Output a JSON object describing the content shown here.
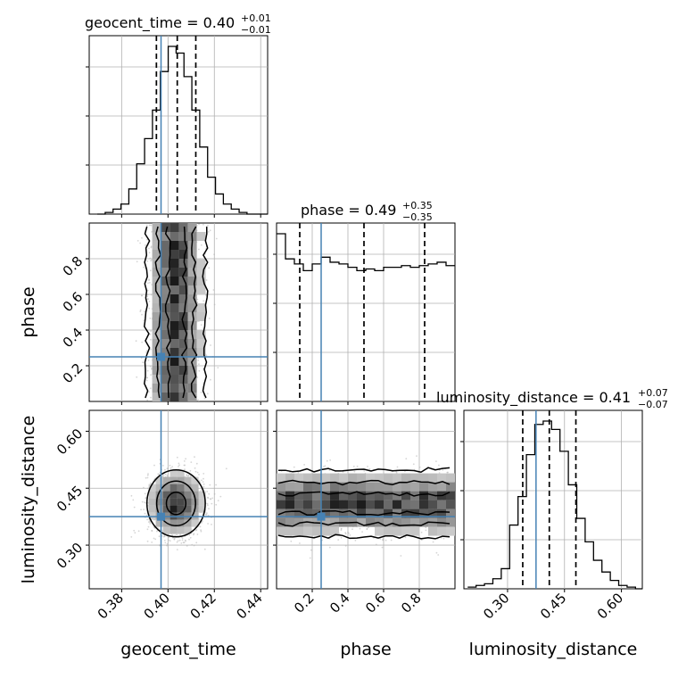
{
  "chart_data": {
    "type": "corner",
    "parameters": [
      "geocent_time",
      "phase",
      "luminosity_distance"
    ],
    "axis_labels": {
      "geocent_time": "geocent_time",
      "phase": "phase",
      "luminosity_distance": "luminosity_distance"
    },
    "ranges": {
      "geocent_time": [
        0.366,
        0.443
      ],
      "phase": [
        0.0,
        1.0
      ],
      "luminosity_distance": [
        0.185,
        0.655
      ]
    },
    "ticks": {
      "geocent_time": [
        {
          "value": 0.38,
          "label": "0.38"
        },
        {
          "value": 0.4,
          "label": "0.40"
        },
        {
          "value": 0.42,
          "label": "0.42"
        },
        {
          "value": 0.44,
          "label": "0.44"
        }
      ],
      "phase": [
        {
          "value": 0.2,
          "label": "0.2"
        },
        {
          "value": 0.4,
          "label": "0.4"
        },
        {
          "value": 0.6,
          "label": "0.6"
        },
        {
          "value": 0.8,
          "label": "0.8"
        }
      ],
      "luminosity_distance": [
        {
          "value": 0.3,
          "label": "0.30"
        },
        {
          "value": 0.45,
          "label": "0.45"
        },
        {
          "value": 0.6,
          "label": "0.60"
        }
      ]
    },
    "truths": {
      "geocent_time": 0.397,
      "phase": 0.25,
      "luminosity_distance": 0.375
    },
    "titles": [
      {
        "param": "geocent_time",
        "text": "geocent_time = 0.40",
        "sup": "+0.01",
        "sub": "−0.01"
      },
      {
        "param": "phase",
        "text": "phase = 0.49",
        "sup": "+0.35",
        "sub": "−0.35"
      },
      {
        "param": "luminosity_distance",
        "text": "luminosity_distance = 0.41",
        "sup": "+0.07",
        "sub": "−0.07"
      }
    ],
    "quantiles": {
      "geocent_time": [
        0.395,
        0.404,
        0.412
      ],
      "phase": [
        0.13,
        0.49,
        0.83
      ],
      "luminosity_distance": [
        0.34,
        0.41,
        0.48
      ]
    },
    "histograms": {
      "geocent_time": {
        "edges_start": 0.3695,
        "bin_width": 0.0034,
        "counts": [
          0,
          1,
          3,
          6,
          15,
          30,
          45,
          62,
          85,
          100,
          96,
          82,
          62,
          40,
          22,
          12,
          6,
          3,
          1,
          0,
          0,
          0
        ]
      },
      "phase": {
        "edges_start": 0.0,
        "bin_width": 0.05,
        "counts": [
          100,
          85,
          82,
          78,
          82,
          86,
          83,
          82,
          80,
          78,
          79,
          78,
          80,
          80,
          81,
          80,
          81,
          82,
          83,
          81
        ]
      },
      "luminosity_distance": {
        "edges_start": 0.195,
        "bin_width": 0.0221,
        "counts": [
          1,
          2,
          3,
          6,
          12,
          38,
          55,
          80,
          98,
          100,
          95,
          82,
          62,
          42,
          28,
          17,
          10,
          5,
          2,
          1,
          0
        ]
      }
    },
    "joint": {
      "phase_vs_geocent_time": {
        "x_center": 0.4035,
        "x_sigma": 0.006,
        "y": "uniform"
      },
      "luminosity_distance_vs_geocent_time": {
        "x_center": 0.4035,
        "x_sigma": 0.006,
        "y_center": 0.41,
        "y_sigma": 0.042
      },
      "luminosity_distance_vs_phase": {
        "x": "uniform",
        "y_center": 0.41,
        "y_sigma": 0.042
      }
    },
    "colors": {
      "truth": "#4682b4",
      "hist": "#000000",
      "grid": "#b0b0b0",
      "dense": "#000000"
    },
    "grid": true
  }
}
